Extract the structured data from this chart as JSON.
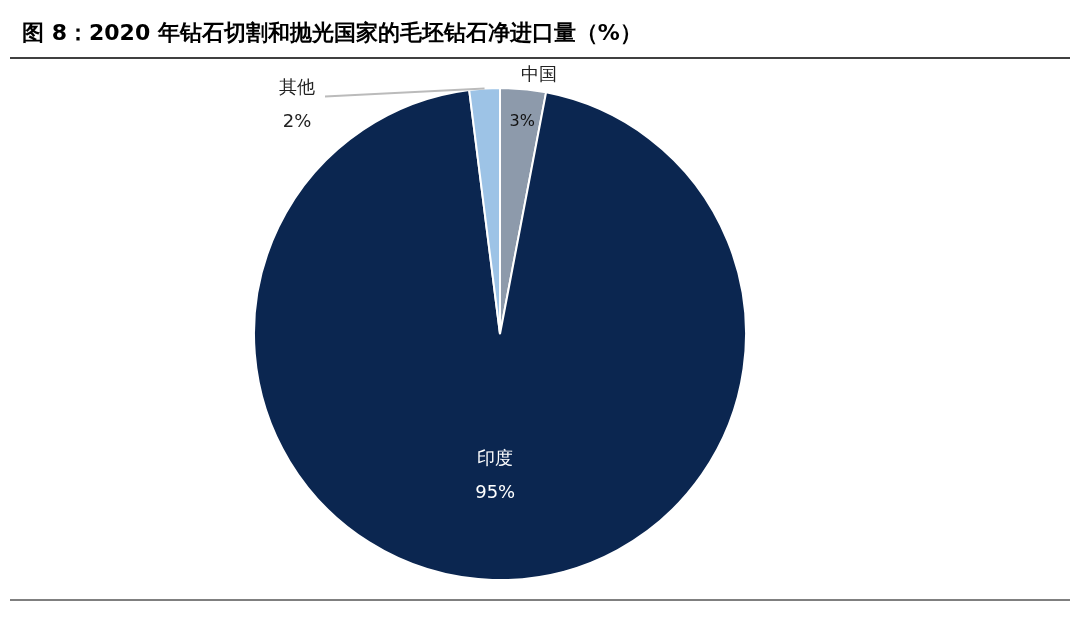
{
  "chart_data": {
    "type": "pie",
    "title": "图 8：2020 年钻石切割和抛光国家的毛坯钻石净进口量（%）",
    "categories": [
      "中国",
      "印度",
      "其他"
    ],
    "values": [
      3,
      95,
      2
    ],
    "value_labels": [
      "3%",
      "95%",
      "2%"
    ],
    "colors": [
      "#8d9aab",
      "#0b2650",
      "#9dc3e6"
    ]
  }
}
